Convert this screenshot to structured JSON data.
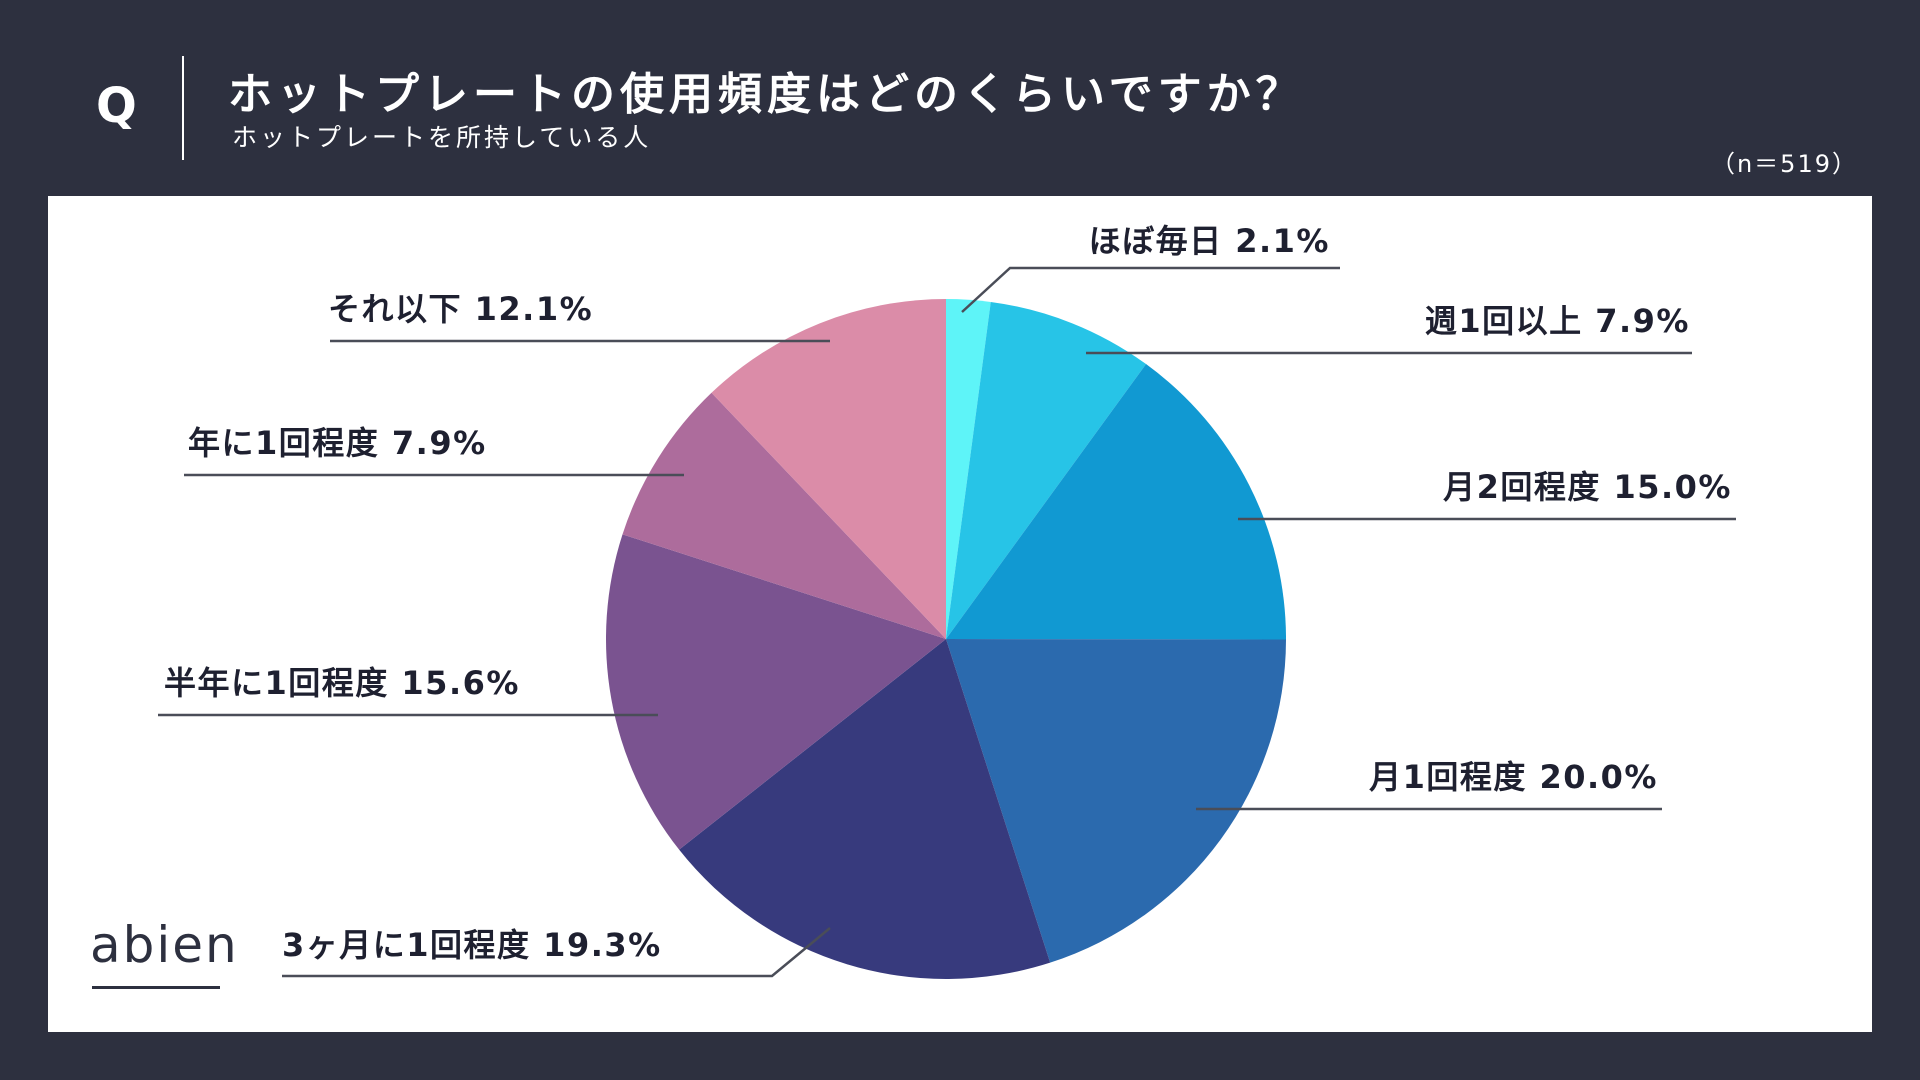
{
  "header": {
    "q_mark": "Q",
    "title": "ホットプレートの使用頻度はどのくらいですか？",
    "subtitle": "ホットプレートを所持している人",
    "sample_size": "（n＝519）"
  },
  "logo": {
    "text": "abien"
  },
  "chart_data": {
    "type": "pie",
    "unit": "%",
    "start": "top",
    "direction": "clockwise",
    "labels": [
      "ほぼ毎日",
      "週1回以上",
      "月2回程度",
      "月1回程度",
      "3ヶ月に1回程度",
      "半年に1回程度",
      "年に1回程度",
      "それ以下"
    ],
    "values": [
      2.1,
      7.9,
      15.0,
      20.0,
      19.3,
      15.6,
      7.9,
      12.1
    ],
    "value_labels": [
      "2.1%",
      "7.9%",
      "15.0%",
      "20.0%",
      "19.3%",
      "15.6%",
      "7.9%",
      "12.1%"
    ],
    "colors": [
      "#5ef4f8",
      "#27c4e7",
      "#1199d2",
      "#2b6aae",
      "#373a7d",
      "#7a5390",
      "#ad6c9c",
      "#db8ca8"
    ]
  }
}
